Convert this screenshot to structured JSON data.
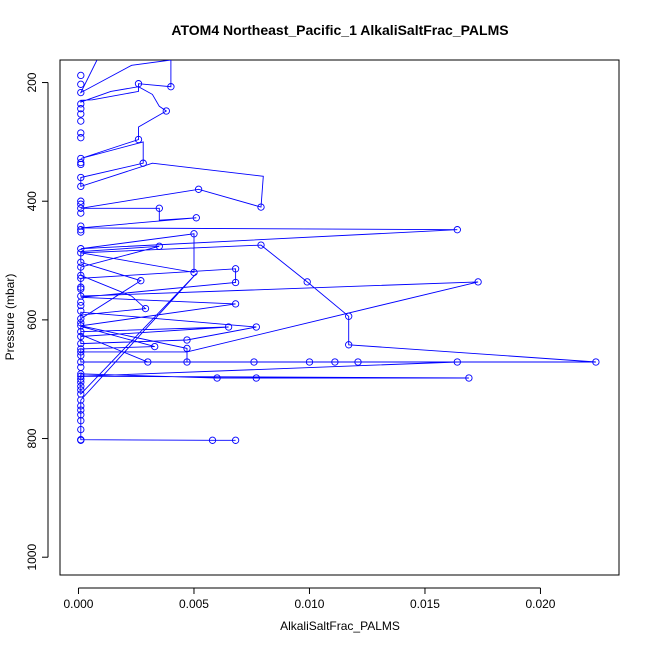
{
  "chart_data": {
    "type": "line",
    "title": "ATOM4 Northeast_Pacific_1 AlkaliSaltFrac_PALMS",
    "xlabel": "AlkaliSaltFrac_PALMS",
    "ylabel": "Pressure (mbar)",
    "xlim": [
      -0.0008,
      0.0234
    ],
    "ylim": [
      1030,
      162
    ],
    "y_reversed": true,
    "grid": false,
    "xticks": [
      "0.000",
      "0.005",
      "0.010",
      "0.015",
      "0.020"
    ],
    "xtick_values": [
      0,
      0.005,
      0.01,
      0.015,
      0.02
    ],
    "yticks": [
      "200",
      "400",
      "600",
      "800",
      "1000"
    ],
    "ytick_values": [
      200,
      400,
      600,
      800,
      1000
    ],
    "series": [
      {
        "color": "#0000ff",
        "points": [
          [
            0.0008,
            162
          ],
          [
            0.0001,
            217
          ],
          [
            0.0023,
            171
          ],
          [
            0.004,
            162
          ],
          [
            0.004,
            207
          ],
          [
            0.0026,
            202
          ],
          [
            0.0026,
            215
          ],
          [
            0.0006,
            229
          ],
          [
            0.0001,
            230
          ],
          [
            0.0001,
            233
          ],
          [
            0.0014,
            215
          ],
          [
            0.0026,
            207
          ],
          [
            0.0032,
            220
          ],
          [
            0.0035,
            240
          ],
          [
            0.0038,
            248
          ],
          [
            0.0026,
            275
          ],
          [
            0.0026,
            296
          ],
          [
            0.0001,
            328
          ],
          [
            0.0028,
            300
          ],
          [
            0.0028,
            336
          ],
          [
            0.0001,
            360
          ],
          [
            0.0001,
            375
          ],
          [
            0.0032,
            336
          ],
          [
            0.008,
            358
          ],
          [
            0.0079,
            410
          ],
          [
            0.0052,
            380
          ],
          [
            0.0001,
            412
          ],
          [
            0.0035,
            412
          ],
          [
            0.0035,
            432
          ],
          [
            0.0051,
            428
          ],
          [
            0.0001,
            445
          ],
          [
            0.0164,
            448
          ],
          [
            0.0001,
            480
          ],
          [
            0.005,
            455
          ],
          [
            0.005,
            520
          ],
          [
            0.0001,
            487
          ],
          [
            0.0079,
            474
          ],
          [
            0.0099,
            536
          ],
          [
            0.0117,
            594
          ],
          [
            0.0117,
            642
          ],
          [
            0.0224,
            671
          ],
          [
            0.0001,
            671
          ],
          [
            0.0001,
            654
          ],
          [
            0.0047,
            654
          ],
          [
            0.0173,
            536
          ],
          [
            0.0001,
            560
          ],
          [
            0.0001,
            530
          ],
          [
            0.0068,
            514
          ],
          [
            0.0068,
            537
          ],
          [
            0.0001,
            562
          ],
          [
            0.0068,
            573
          ],
          [
            0.0001,
            610
          ],
          [
            0.0001,
            587
          ],
          [
            0.0077,
            612
          ],
          [
            0.0047,
            634
          ],
          [
            0.0001,
            640
          ],
          [
            0.0001,
            620
          ],
          [
            0.0065,
            612
          ],
          [
            0.0001,
            628
          ],
          [
            0.0001,
            598
          ],
          [
            0.0027,
            534
          ],
          [
            0.0001,
            503
          ],
          [
            0.0001,
            485
          ],
          [
            0.0035,
            476
          ],
          [
            0.0001,
            511
          ],
          [
            0.0001,
            525
          ],
          [
            0.0023,
            560
          ],
          [
            0.0029,
            581
          ],
          [
            0.0001,
            592
          ],
          [
            0.0001,
            611
          ],
          [
            0.0033,
            645
          ],
          [
            0.0001,
            649
          ],
          [
            0.0001,
            671
          ],
          [
            0.0047,
            671
          ],
          [
            0.0047,
            648
          ],
          [
            0.0001,
            610
          ],
          [
            0.0001,
            625
          ],
          [
            0.003,
            671
          ],
          [
            0.0076,
            671
          ],
          [
            0.01,
            671
          ],
          [
            0.0111,
            671
          ],
          [
            0.0121,
            671
          ],
          [
            0.0164,
            671
          ],
          [
            0.0164,
            671
          ],
          [
            0.0001,
            695
          ],
          [
            0.0169,
            698
          ],
          [
            0.0169,
            698
          ],
          [
            0.0077,
            698
          ],
          [
            0.0077,
            698
          ],
          [
            0.006,
            698
          ],
          [
            0.0001,
            691
          ],
          [
            0.0001,
            700
          ],
          [
            0.0001,
            725
          ],
          [
            0.0051,
            522
          ],
          [
            0.0001,
            735
          ],
          [
            0.0001,
            760
          ],
          [
            0.0001,
            770
          ],
          [
            0.0001,
            785
          ],
          [
            0.0001,
            802
          ],
          [
            0.0058,
            803
          ],
          [
            0.0068,
            803
          ]
        ],
        "markers": [
          [
            0.0001,
            188
          ],
          [
            0.0001,
            203
          ],
          [
            0.0001,
            217
          ],
          [
            0.0001,
            236
          ],
          [
            0.0001,
            244
          ],
          [
            0.0001,
            253
          ],
          [
            0.0001,
            265
          ],
          [
            0.0001,
            285
          ],
          [
            0.0001,
            293
          ],
          [
            0.0001,
            328
          ],
          [
            0.0001,
            335
          ],
          [
            0.0001,
            338
          ],
          [
            0.0001,
            360
          ],
          [
            0.0001,
            375
          ],
          [
            0.0001,
            400
          ],
          [
            0.0001,
            405
          ],
          [
            0.0001,
            412
          ],
          [
            0.0001,
            420
          ],
          [
            0.0001,
            442
          ],
          [
            0.0001,
            448
          ],
          [
            0.0001,
            452
          ],
          [
            0.0001,
            480
          ],
          [
            0.0001,
            487
          ],
          [
            0.0001,
            503
          ],
          [
            0.0001,
            511
          ],
          [
            0.0001,
            525
          ],
          [
            0.0001,
            530
          ],
          [
            0.0001,
            545
          ],
          [
            0.0001,
            548
          ],
          [
            0.0001,
            560
          ],
          [
            0.0001,
            570
          ],
          [
            0.0001,
            576
          ],
          [
            0.0001,
            585
          ],
          [
            0.0001,
            598
          ],
          [
            0.0001,
            605
          ],
          [
            0.0001,
            610
          ],
          [
            0.0001,
            620
          ],
          [
            0.0001,
            628
          ],
          [
            0.0001,
            640
          ],
          [
            0.0001,
            649
          ],
          [
            0.0001,
            654
          ],
          [
            0.0001,
            660
          ],
          [
            0.0001,
            671
          ],
          [
            0.0001,
            680
          ],
          [
            0.0001,
            691
          ],
          [
            0.0001,
            695
          ],
          [
            0.0001,
            700
          ],
          [
            0.0001,
            705
          ],
          [
            0.0001,
            712
          ],
          [
            0.0001,
            718
          ],
          [
            0.0001,
            725
          ],
          [
            0.0001,
            735
          ],
          [
            0.0001,
            745
          ],
          [
            0.0001,
            752
          ],
          [
            0.0001,
            760
          ],
          [
            0.0001,
            770
          ],
          [
            0.0001,
            785
          ],
          [
            0.0001,
            802
          ],
          [
            0.0001,
            803
          ],
          [
            0.0026,
            202
          ],
          [
            0.004,
            207
          ],
          [
            0.0038,
            248
          ],
          [
            0.0026,
            296
          ],
          [
            0.0028,
            336
          ],
          [
            0.0052,
            380
          ],
          [
            0.0035,
            412
          ],
          [
            0.0051,
            428
          ],
          [
            0.005,
            455
          ],
          [
            0.0035,
            476
          ],
          [
            0.005,
            520
          ],
          [
            0.0027,
            534
          ],
          [
            0.0029,
            581
          ],
          [
            0.0033,
            645
          ],
          [
            0.0047,
            634
          ],
          [
            0.0047,
            648
          ],
          [
            0.0047,
            671
          ],
          [
            0.003,
            671
          ],
          [
            0.006,
            698
          ],
          [
            0.0058,
            803
          ],
          [
            0.0068,
            803
          ],
          [
            0.0065,
            612
          ],
          [
            0.0068,
            514
          ],
          [
            0.0068,
            537
          ],
          [
            0.0068,
            573
          ],
          [
            0.0077,
            612
          ],
          [
            0.0076,
            671
          ],
          [
            0.0077,
            698
          ],
          [
            0.0079,
            410
          ],
          [
            0.0079,
            474
          ],
          [
            0.0099,
            536
          ],
          [
            0.01,
            671
          ],
          [
            0.0111,
            671
          ],
          [
            0.0121,
            671
          ],
          [
            0.0117,
            594
          ],
          [
            0.0117,
            642
          ],
          [
            0.0164,
            448
          ],
          [
            0.0164,
            671
          ],
          [
            0.0169,
            698
          ],
          [
            0.0173,
            536
          ],
          [
            0.0224,
            671
          ]
        ]
      }
    ]
  }
}
